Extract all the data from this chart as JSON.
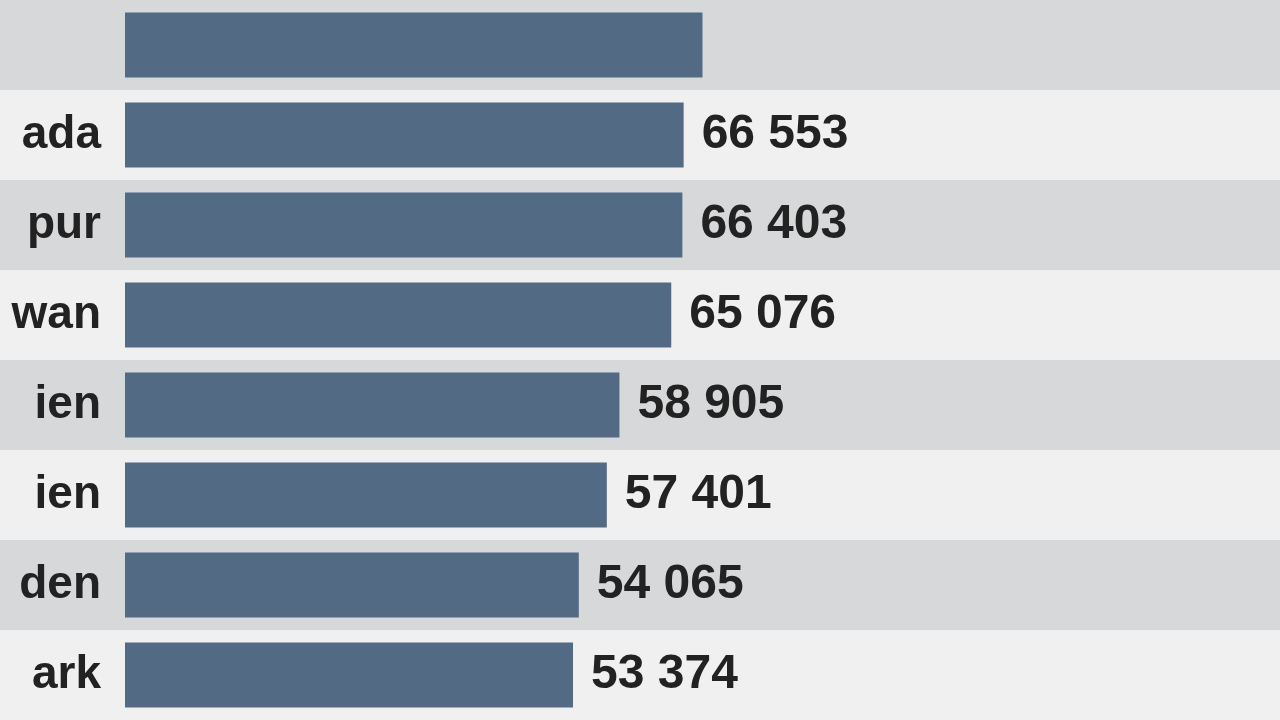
{
  "chart_data": {
    "type": "bar",
    "orientation": "horizontal",
    "categories": [
      null,
      "ada",
      "pur",
      "wan",
      "ien",
      "ien",
      "den",
      "ark"
    ],
    "values": [
      68800,
      66553,
      66403,
      65076,
      58905,
      57401,
      54065,
      53374
    ],
    "value_labels": [
      null,
      "66 553",
      "66 403",
      "65 076",
      "58 905",
      "57 401",
      "54 065",
      "53 374"
    ],
    "color": "#536a84",
    "grid": false,
    "legend": false
  }
}
